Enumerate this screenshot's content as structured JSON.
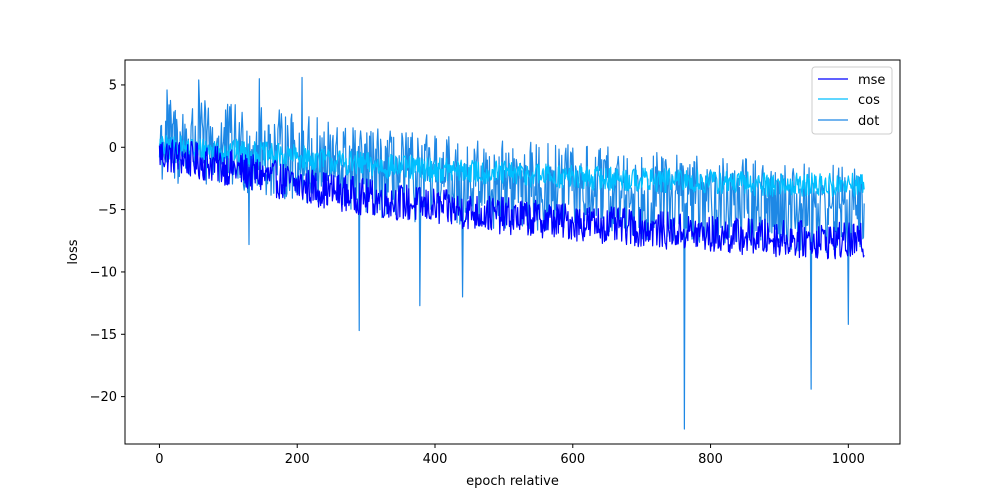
{
  "chart_data": {
    "type": "line",
    "title": "",
    "xlabel": "epoch relative",
    "ylabel": "loss",
    "xlim": [
      -50,
      1075
    ],
    "ylim": [
      -23.8,
      7.0
    ],
    "xticks": [
      0,
      200,
      400,
      600,
      800,
      1000
    ],
    "yticks": [
      5,
      0,
      -5,
      -10,
      -15,
      -20
    ],
    "xtick_labels": [
      "0",
      "200",
      "400",
      "600",
      "800",
      "1000"
    ],
    "ytick_labels": [
      "5",
      "0",
      "−5",
      "−10",
      "−15",
      "−20"
    ],
    "grid": false,
    "legend_position": "top-right",
    "n_points": 1024,
    "series": [
      {
        "name": "mse",
        "color": "#0000ff",
        "summary": "noisy decreasing trend: about -0.5 at epoch 0 to about -7.5 at epoch 1023, amplitude ~1.5",
        "x": [
          0,
          100,
          200,
          300,
          400,
          500,
          600,
          700,
          800,
          900,
          1023
        ],
        "y": [
          -0.5,
          -1.6,
          -3.0,
          -4.0,
          -4.8,
          -5.5,
          -6.0,
          -6.5,
          -7.0,
          -7.3,
          -7.6
        ]
      },
      {
        "name": "cos",
        "color": "#00bfff",
        "summary": "noisy decreasing trend: about 0 at epoch 0 to about -3 at epoch 1023, amplitude ~1",
        "x": [
          0,
          100,
          200,
          300,
          400,
          500,
          600,
          700,
          800,
          900,
          1023
        ],
        "y": [
          0.0,
          -0.3,
          -0.8,
          -1.4,
          -1.8,
          -2.1,
          -2.4,
          -2.6,
          -2.8,
          -3.0,
          -3.1
        ]
      },
      {
        "name": "dot",
        "color": "#1e88e5",
        "summary": "highly noisy decreasing trend: about 0.5 at epoch 0 to about -5 at epoch 1023, amplitude ~4, with spikes",
        "x": [
          0,
          100,
          200,
          300,
          400,
          500,
          600,
          700,
          800,
          900,
          1023
        ],
        "y": [
          0.5,
          0.0,
          -0.8,
          -2.0,
          -2.6,
          -3.0,
          -3.3,
          -3.8,
          -4.3,
          -4.7,
          -5.0
        ],
        "spikes": [
          [
            11,
            4.6
          ],
          [
            57,
            5.4
          ],
          [
            145,
            5.5
          ],
          [
            207,
            5.6
          ],
          [
            130,
            -7.8
          ],
          [
            290,
            -14.7
          ],
          [
            378,
            -12.7
          ],
          [
            440,
            -12.0
          ],
          [
            762,
            -22.6
          ],
          [
            946,
            -19.4
          ],
          [
            1000,
            -14.2
          ]
        ]
      }
    ]
  }
}
